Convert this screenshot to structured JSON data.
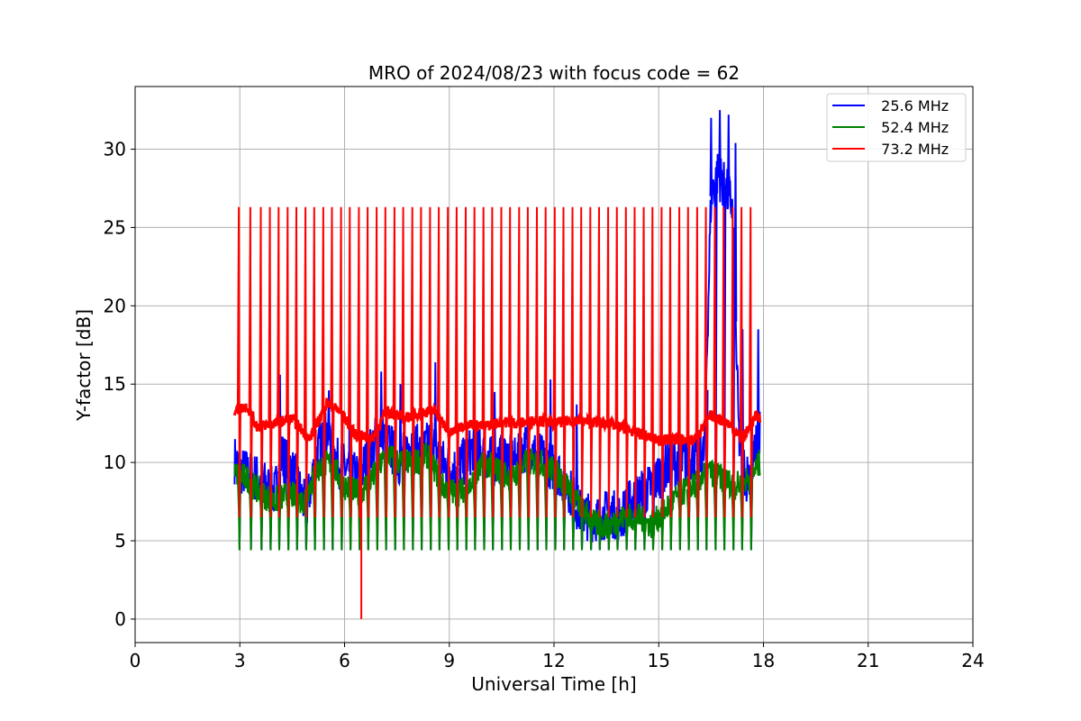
{
  "chart_data": {
    "type": "line",
    "title": "MRO of 2024/08/23 with focus code = 62",
    "xlabel": "Universal Time [h]",
    "ylabel": "Y-factor [dB]",
    "xlim": [
      0,
      24
    ],
    "ylim": [
      -1.5,
      34
    ],
    "xticks": [
      0,
      3,
      6,
      9,
      12,
      15,
      18,
      21,
      24
    ],
    "xtick_labels": [
      "0",
      "3",
      "6",
      "9",
      "12",
      "15",
      "18",
      "21",
      "24"
    ],
    "yticks": [
      0,
      5,
      10,
      15,
      20,
      25,
      30
    ],
    "ytick_labels": [
      "0",
      "5",
      "10",
      "15",
      "20",
      "25",
      "30"
    ],
    "grid": true,
    "legend_position": "top-right",
    "series": [
      {
        "name": "  25.6 MHz",
        "color": "#0000ff",
        "baseline": {
          "x": [
            2.85,
            3.0,
            3.5,
            4.0,
            4.2,
            4.6,
            4.9,
            5.2,
            5.5,
            5.8,
            6.1,
            6.4,
            6.7,
            7.0,
            7.3,
            7.6,
            7.9,
            8.2,
            8.5,
            8.8,
            9.1,
            9.4,
            9.7,
            10.0,
            10.3,
            10.6,
            10.9,
            11.2,
            11.5,
            11.8,
            12.1,
            12.4,
            12.7,
            13.0,
            13.3,
            13.6,
            13.9,
            14.2,
            14.5,
            14.8,
            15.1,
            15.4,
            15.7,
            16.0,
            16.3,
            16.5,
            16.7,
            16.9,
            17.1,
            17.3,
            17.5,
            17.7,
            17.9
          ],
          "y": [
            10.2,
            9.5,
            9.0,
            8.0,
            10.5,
            9.0,
            7.0,
            10.5,
            12.0,
            10.0,
            9.5,
            9.0,
            10.5,
            12.0,
            11.0,
            10.0,
            11.5,
            10.5,
            11.5,
            10.0,
            9.5,
            10.0,
            11.0,
            10.5,
            10.0,
            10.5,
            10.0,
            11.0,
            10.5,
            10.0,
            9.5,
            8.5,
            7.0,
            6.5,
            6.5,
            6.8,
            6.5,
            7.5,
            8.0,
            8.5,
            9.5,
            10.0,
            10.0,
            10.5,
            10.5,
            27.0,
            28.5,
            27.5,
            26.5,
            11.5,
            9.0,
            10.0,
            12.0
          ]
        },
        "spikes": {
          "x": [
            4.15,
            5.55,
            6.15,
            7.05,
            7.6,
            8.6,
            10.3,
            11.25,
            11.9,
            12.65,
            16.5,
            16.75,
            17.0,
            17.2,
            17.4,
            17.85
          ],
          "y": [
            15.6,
            14.6,
            19.2,
            15.8,
            15.0,
            16.4,
            14.5,
            14.6,
            15.3,
            13.7,
            32.0,
            32.5,
            32.2,
            30.4,
            18.5,
            18.5
          ]
        },
        "pulse_low": 4.4,
        "pulse_high": null
      },
      {
        "name": "  52.4 MHz",
        "color": "#008000",
        "baseline": {
          "x": [
            2.85,
            3.2,
            3.6,
            4.0,
            4.4,
            4.8,
            5.2,
            5.6,
            6.0,
            6.4,
            6.8,
            7.2,
            7.6,
            8.0,
            8.4,
            8.8,
            9.2,
            9.6,
            10.0,
            10.4,
            10.8,
            11.2,
            11.6,
            12.0,
            12.4,
            12.8,
            13.2,
            13.6,
            14.0,
            14.4,
            14.8,
            15.2,
            15.6,
            16.0,
            16.4,
            16.8,
            17.2,
            17.6,
            17.9
          ],
          "y": [
            9.3,
            9.0,
            8.0,
            7.5,
            8.0,
            7.5,
            9.5,
            10.0,
            8.5,
            8.0,
            9.0,
            10.5,
            10.0,
            10.0,
            10.5,
            8.5,
            8.0,
            8.5,
            10.0,
            9.5,
            9.0,
            10.0,
            10.0,
            9.5,
            8.5,
            7.0,
            6.0,
            6.0,
            6.5,
            6.5,
            6.0,
            7.0,
            8.0,
            8.5,
            9.5,
            9.0,
            8.5,
            9.0,
            10.0
          ]
        },
        "pulse_low": 4.4,
        "pulse_high": 7.0
      },
      {
        "name": "  73.2 MHz",
        "color": "#ff0000",
        "baseline": {
          "x": [
            2.85,
            3.2,
            3.5,
            4.0,
            4.5,
            5.0,
            5.5,
            5.9,
            6.3,
            6.8,
            7.2,
            7.7,
            8.2,
            8.6,
            9.0,
            9.5,
            10.0,
            10.5,
            11.0,
            11.5,
            12.0,
            12.5,
            13.0,
            13.5,
            14.0,
            14.5,
            15.0,
            15.5,
            16.0,
            16.5,
            17.0,
            17.4,
            17.8,
            17.9
          ],
          "y": [
            13.3,
            13.6,
            12.3,
            12.5,
            12.8,
            11.5,
            13.8,
            13.2,
            11.8,
            11.5,
            13.3,
            12.8,
            13.2,
            13.3,
            11.8,
            12.5,
            12.3,
            12.6,
            12.5,
            12.7,
            12.5,
            12.7,
            12.6,
            12.5,
            12.2,
            11.8,
            11.4,
            11.5,
            11.4,
            13.0,
            12.5,
            11.5,
            13.0,
            12.8
          ]
        },
        "pulse_low": 6.5,
        "pulse_high": 26.3,
        "dropout": {
          "x": 6.48,
          "y": 0
        }
      }
    ],
    "pulse_times": [
      2.97,
      3.3,
      3.6,
      3.86,
      4.11,
      4.37,
      4.62,
      4.88,
      5.13,
      5.39,
      5.64,
      5.9,
      6.15,
      6.41,
      6.66,
      6.92,
      7.17,
      7.43,
      7.68,
      7.94,
      8.19,
      8.45,
      8.7,
      8.96,
      9.21,
      9.47,
      9.72,
      9.98,
      10.23,
      10.49,
      10.74,
      11.0,
      11.25,
      11.51,
      11.76,
      12.02,
      12.27,
      12.53,
      12.78,
      13.04,
      13.29,
      13.55,
      13.8,
      14.06,
      14.31,
      14.57,
      14.82,
      15.08,
      15.33,
      15.59,
      15.84,
      16.1,
      16.35,
      16.61,
      16.86,
      17.12,
      17.37,
      17.63
    ]
  }
}
